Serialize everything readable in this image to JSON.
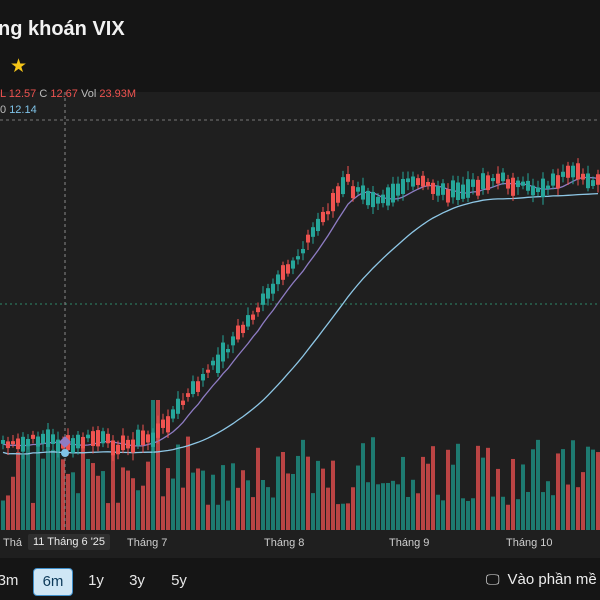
{
  "header": {
    "title": "ng khoán VIX",
    "star_icon": "star-icon"
  },
  "legend": {
    "ohlc_prefix": "L 12.57",
    "close_label": "C",
    "close_value": "12.67",
    "vol_label": "Vol",
    "vol_value": "23.93M",
    "ma_prefix": "0",
    "ma_value": "12.14"
  },
  "colors": {
    "up": "#26a69a",
    "down": "#ef5350",
    "ma_fast": "#8e7cc3",
    "ma_slow": "#8ec7e6",
    "volume_up": "#1f8b7f",
    "volume_down": "#d64b4b"
  },
  "x_axis": {
    "labels": [
      "Thá",
      "Tháng 7",
      "Tháng 8",
      "Tháng 9",
      "Tháng 10"
    ],
    "crosshair_label": "11 Tháng 6 '25"
  },
  "toolbar": {
    "ranges": [
      "3m",
      "6m",
      "1y",
      "3y",
      "5y"
    ],
    "active_range": "6m",
    "open_app_label": "Vào phần mề",
    "open_app_icon": "monitor-icon"
  },
  "chart_data": {
    "type": "candlestick",
    "series": [
      {
        "name": "price"
      },
      {
        "name": "MA fast"
      },
      {
        "name": "MA slow"
      },
      {
        "name": "volume"
      }
    ]
  }
}
